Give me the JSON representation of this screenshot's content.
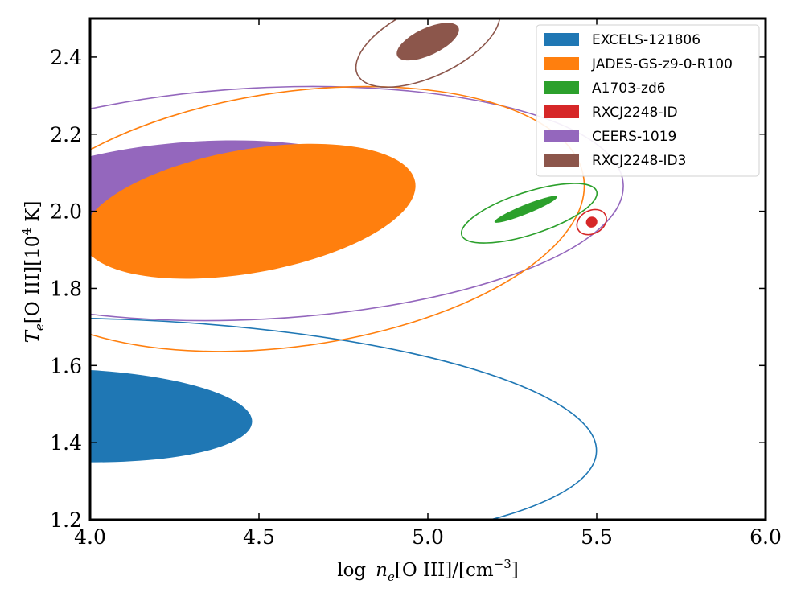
{
  "chart_data": {
    "type": "contour",
    "x_axis": {
      "label_main": "log",
      "label_var": "n",
      "label_sub": "e",
      "label_ion": "[O III]/[cm",
      "label_exp": "−3",
      "label_end": "]",
      "range": [
        4.0,
        6.0
      ],
      "ticks": [
        4.0,
        4.5,
        5.0,
        5.5,
        6.0
      ],
      "tick_labels": [
        "4.0",
        "4.5",
        "5.0",
        "5.5",
        "6.0"
      ]
    },
    "y_axis": {
      "label_var": "T",
      "label_sub": "e",
      "label_ion": "[O III][10",
      "label_exp": "4",
      "label_end": " K]",
      "range": [
        1.2,
        2.5
      ],
      "ticks": [
        1.2,
        1.4,
        1.6,
        1.8,
        2.0,
        2.2,
        2.4
      ],
      "tick_labels": [
        "1.2",
        "1.4",
        "1.6",
        "1.8",
        "2.0",
        "2.2",
        "2.4"
      ]
    },
    "legend_position": "top-right",
    "series": [
      {
        "name": "EXCELS-121806",
        "color": "#1f77b4",
        "inner": {
          "cx": 3.95,
          "cy": 1.47,
          "rx": 0.53,
          "ry": 0.12,
          "angle": 2
        },
        "outer": {
          "cx": 4.08,
          "cy": 1.42,
          "rx": 1.42,
          "ry": 0.3,
          "angle": 2
        }
      },
      {
        "name": "JADES-GS-z9-0-R100",
        "color": "#ff7f0e",
        "inner": {
          "cx": 4.47,
          "cy": 2.0,
          "rx": 0.5,
          "ry": 0.16,
          "angle": -10
        },
        "outer": {
          "cx": 4.6,
          "cy": 1.98,
          "rx": 0.87,
          "ry": 0.33,
          "angle": -8
        }
      },
      {
        "name": "A1703-zd6",
        "color": "#2ca02c",
        "inner": {
          "cx": 5.29,
          "cy": 2.005,
          "rx": 0.1,
          "ry": 0.012,
          "angle": -22
        },
        "outer": {
          "cx": 5.3,
          "cy": 1.995,
          "rx": 0.21,
          "ry": 0.055,
          "angle": -18
        }
      },
      {
        "name": "RXCJ2248-ID",
        "color": "#d62728",
        "inner": {
          "cx": 5.485,
          "cy": 1.972,
          "rx": 0.017,
          "ry": 0.014,
          "angle": -28
        },
        "outer": {
          "cx": 5.485,
          "cy": 1.972,
          "rx": 0.046,
          "ry": 0.03,
          "angle": -28
        }
      },
      {
        "name": "CEERS-1019",
        "color": "#9467bd",
        "inner": {
          "cx": 4.3,
          "cy": 2.03,
          "rx": 0.59,
          "ry": 0.15,
          "angle": -4
        },
        "outer": {
          "cx": 4.5,
          "cy": 2.02,
          "rx": 1.08,
          "ry": 0.3,
          "angle": -3
        }
      },
      {
        "name": "RXCJ2248-ID3",
        "color": "#8c564b",
        "inner": {
          "cx": 5.0,
          "cy": 2.44,
          "rx": 0.1,
          "ry": 0.035,
          "angle": -25
        },
        "outer": {
          "cx": 5.0,
          "cy": 2.44,
          "rx": 0.23,
          "ry": 0.09,
          "angle": -25
        }
      }
    ],
    "draw_order": [
      "CEERS-1019",
      "JADES-GS-z9-0-R100",
      "EXCELS-121806",
      "A1703-zd6",
      "RXCJ2248-ID",
      "RXCJ2248-ID3"
    ]
  }
}
